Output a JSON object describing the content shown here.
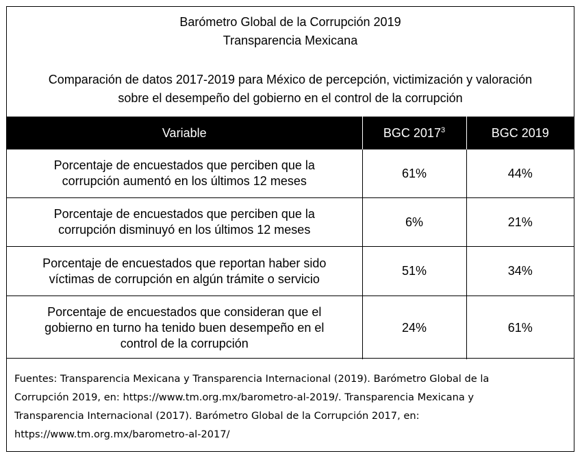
{
  "header": {
    "title_line1": "Barómetro Global de la Corrupción 2019",
    "title_line2": "Transparencia Mexicana",
    "subtitle_line1": "Comparación de datos 2017-2019 para México de percepción, victimización y valoración",
    "subtitle_line2": "sobre el desempeño del gobierno en el control de la corrupción"
  },
  "table": {
    "columns": [
      {
        "label": "Variable",
        "superscript": ""
      },
      {
        "label": "BGC 2017",
        "superscript": "3"
      },
      {
        "label": "BGC 2019",
        "superscript": ""
      }
    ],
    "rows": [
      {
        "variable_lines": [
          "Porcentaje de encuestados que perciben que la",
          "corrupción aumentó en los últimos 12 meses"
        ],
        "bgc2017": "61%",
        "bgc2019": "44%"
      },
      {
        "variable_lines": [
          "Porcentaje de encuestados que perciben que la",
          "corrupción disminuyó en los últimos 12 meses"
        ],
        "bgc2017": "6%",
        "bgc2019": "21%"
      },
      {
        "variable_lines": [
          "Porcentaje de encuestados que reportan haber sido",
          "víctimas de corrupción en algún trámite o servicio"
        ],
        "bgc2017": "51%",
        "bgc2019": "34%"
      },
      {
        "variable_lines": [
          "Porcentaje de encuestados que consideran que el",
          "gobierno en turno ha tenido buen desempeño en el",
          "control de la corrupción"
        ],
        "bgc2017": "24%",
        "bgc2019": "61%"
      }
    ]
  },
  "footer": {
    "lines": [
      "Fuentes: Transparencia Mexicana y Transparencia Internacional (2019). Barómetro Global de la",
      "Corrupción 2019, en: https://www.tm.org.mx/barometro-al-2019/. Transparencia Mexicana y",
      "Transparencia Internacional (2017). Barómetro Global de la Corrupción 2017, en:",
      "https://www.tm.org.mx/barometro-al-2017/"
    ]
  }
}
